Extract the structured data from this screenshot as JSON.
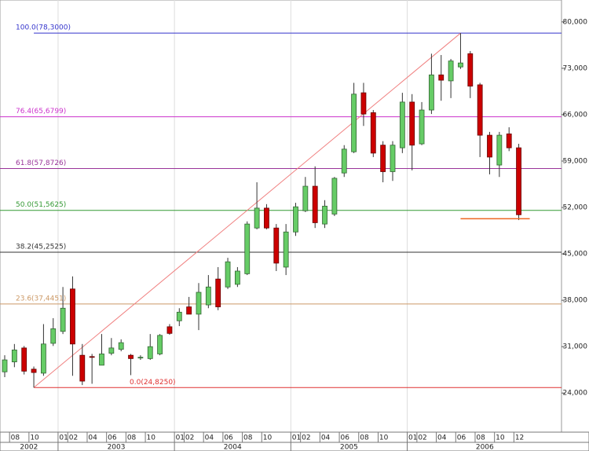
{
  "chart_data": {
    "type": "candlestick",
    "categories": [
      null,
      "08",
      null,
      "10",
      null,
      null,
      "01",
      "02",
      null,
      "04",
      null,
      "06",
      null,
      "08",
      null,
      "10",
      null,
      null,
      "01",
      "02",
      null,
      "04",
      null,
      "06",
      null,
      "08",
      null,
      "10",
      null,
      null,
      "01",
      "02",
      null,
      "04",
      null,
      "06",
      null,
      "08",
      null,
      "10",
      null,
      null,
      "01",
      "02",
      null,
      "04",
      null,
      "06",
      null,
      "08",
      null,
      "10",
      null,
      "12"
    ],
    "years": [
      "2002",
      "2003",
      "2004",
      "2005",
      "2006"
    ],
    "open": [
      27200,
      28700,
      30800,
      27600,
      27000,
      31500,
      33300,
      39700,
      29700,
      29500,
      28200,
      30000,
      30600,
      29700,
      29300,
      29200,
      29900,
      34000,
      34900,
      37000,
      35900,
      37300,
      41200,
      40000,
      40400,
      42000,
      48900,
      51900,
      48900,
      43000,
      48300,
      51500,
      55200,
      49500,
      51000,
      57200,
      60400,
      69300,
      66300,
      61400,
      57400,
      61000,
      67900,
      61600,
      66700,
      72000,
      71100,
      73200,
      75200,
      70500,
      62900,
      58400,
      63100,
      61000
    ],
    "high": [
      29700,
      31400,
      31100,
      28000,
      34400,
      35300,
      40000,
      41600,
      31400,
      29900,
      32900,
      32300,
      32100,
      29900,
      29700,
      32900,
      32900,
      34400,
      36800,
      38500,
      40600,
      41800,
      43000,
      44400,
      43000,
      49900,
      55800,
      52500,
      49500,
      49500,
      52700,
      56600,
      58200,
      53100,
      56600,
      61400,
      70800,
      70800,
      66700,
      62000,
      62000,
      69300,
      69100,
      67900,
      75200,
      75000,
      74400,
      78300,
      75600,
      70800,
      63400,
      63400,
      64100,
      61600
    ],
    "low": [
      26400,
      27900,
      26800,
      24825,
      26600,
      31100,
      32900,
      26600,
      25200,
      25400,
      28200,
      29700,
      30300,
      26700,
      29000,
      29000,
      29700,
      32800,
      34100,
      35900,
      33500,
      36800,
      36500,
      39700,
      40000,
      41800,
      48700,
      48700,
      42400,
      41800,
      47700,
      51300,
      48900,
      48900,
      50700,
      56600,
      60200,
      64300,
      59600,
      55800,
      56000,
      60200,
      57600,
      61400,
      66100,
      68100,
      68500,
      72900,
      68500,
      59600,
      57000,
      56600,
      60500,
      50100
    ],
    "close": [
      29000,
      30500,
      27300,
      27100,
      31400,
      33700,
      36800,
      31400,
      25800,
      29400,
      29900,
      30800,
      31600,
      29200,
      29400,
      31000,
      32700,
      33000,
      36200,
      35900,
      39200,
      40000,
      37000,
      43800,
      42400,
      49500,
      51900,
      48900,
      43600,
      48300,
      52100,
      55200,
      49700,
      52200,
      56400,
      60800,
      69100,
      66100,
      60200,
      57400,
      61400,
      67900,
      61400,
      66700,
      72000,
      71200,
      74100,
      73800,
      70300,
      62900,
      59600,
      62900,
      61000,
      50900
    ],
    "up_color": "#66cc66",
    "down_color": "#cc0000",
    "ylim": [
      18100,
      83300
    ],
    "yticks": [
      {
        "value": 24000,
        "label": "24,000"
      },
      {
        "value": 31000,
        "label": "31,000"
      },
      {
        "value": 38000,
        "label": "38,000"
      },
      {
        "value": 45000,
        "label": "45,000"
      },
      {
        "value": 52000,
        "label": "52,000"
      },
      {
        "value": 59000,
        "label": "59,000"
      },
      {
        "value": 66000,
        "label": "66,000"
      },
      {
        "value": 73000,
        "label": "73,000"
      },
      {
        "value": 80000,
        "label": "80,000"
      }
    ],
    "fib_levels": [
      {
        "label": "100.0(78,3000)",
        "value": 78300,
        "color": "#3333cc"
      },
      {
        "label": "76.4(65,6799)",
        "value": 65680,
        "color": "#cc33cc"
      },
      {
        "label": "61.8(57,8726)",
        "value": 57873,
        "color": "#993399"
      },
      {
        "label": "50.0(51,5625)",
        "value": 51563,
        "color": "#339933"
      },
      {
        "label": "38.2(45,2525)",
        "value": 45253,
        "color": "#333333"
      },
      {
        "label": "23.6(37,4451)",
        "value": 37445,
        "color": "#cc9966"
      },
      {
        "label": "0.0(24,8250)",
        "value": 24825,
        "color": "#e03030"
      }
    ],
    "support_line": {
      "value": 50300,
      "color": "#ee6622"
    }
  }
}
